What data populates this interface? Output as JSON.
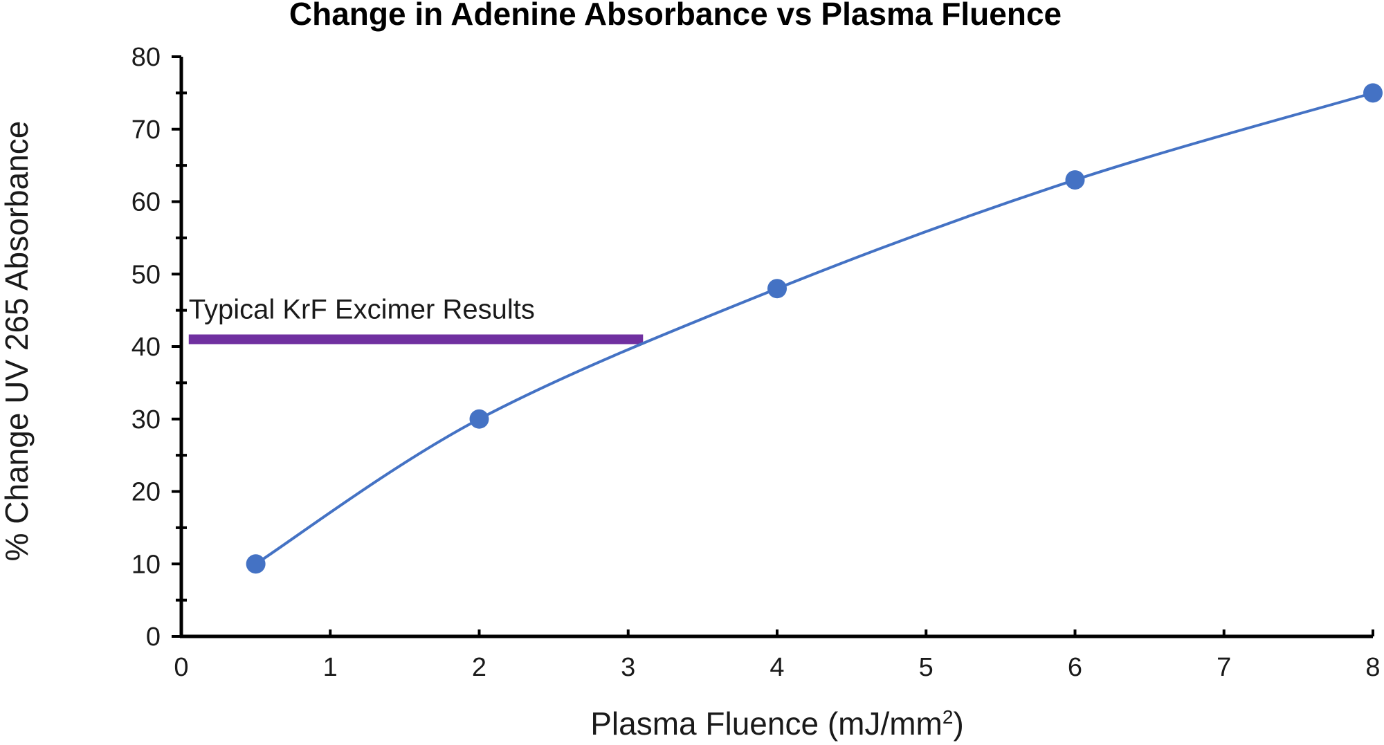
{
  "chart_data": {
    "type": "line",
    "title": "Change in Adenine Absorbance vs Plasma Fluence",
    "xlabel": "Plasma Fluence (mJ/mm",
    "xlabel_superscript": "2",
    "xlabel_suffix": ")",
    "ylabel": "% Change UV 265 Absorbance",
    "xlim": [
      0,
      8
    ],
    "ylim": [
      0,
      80
    ],
    "x_ticks": [
      0,
      1,
      2,
      3,
      4,
      5,
      6,
      7,
      8
    ],
    "y_ticks": [
      0,
      10,
      20,
      30,
      40,
      50,
      60,
      70,
      80
    ],
    "y_minor_step": 5,
    "grid": false,
    "smooth": true,
    "series": [
      {
        "x": [
          0.5,
          2,
          4,
          6,
          8
        ],
        "y": [
          10,
          30,
          48,
          63,
          75
        ],
        "color": "#4472c4",
        "marker": "circle"
      }
    ],
    "annotations": [
      {
        "text": "Typical KrF Excimer Results",
        "y": 41,
        "x_start": 0.05,
        "x_end": 3.1,
        "color": "#7030a0"
      }
    ]
  }
}
